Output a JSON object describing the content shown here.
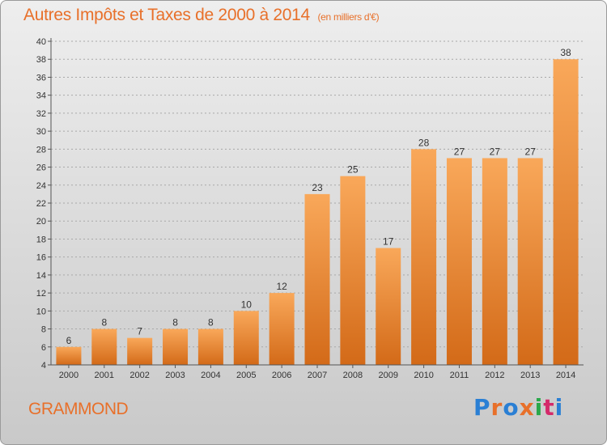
{
  "header": {
    "title": "Autres Impôts et Taxes de 2000 à 2014",
    "unit": "(en milliers d'€)"
  },
  "commune": "GRAMMOND",
  "logo": {
    "text": "Proxiti",
    "colors": [
      "#2a7fd4",
      "#e8702a",
      "#2a7fd4",
      "#e8702a",
      "#2aa84a",
      "#d42a6a",
      "#2a7fd4"
    ]
  },
  "colors": {
    "bar_light": "#f9a85a",
    "bar_dark": "#d36a18",
    "accent": "#e8702a",
    "axis": "#555555",
    "grid": "#a8a8a8"
  },
  "chart_data": {
    "type": "bar",
    "title": "Autres Impôts et Taxes de 2000 à 2014",
    "unit": "(en milliers d'€)",
    "categories": [
      "2000",
      "2001",
      "2002",
      "2003",
      "2004",
      "2005",
      "2006",
      "2007",
      "2008",
      "2009",
      "2010",
      "2011",
      "2012",
      "2013",
      "2014"
    ],
    "values": [
      6,
      8,
      7,
      8,
      8,
      10,
      12,
      23,
      25,
      17,
      28,
      27,
      27,
      27,
      38
    ],
    "ylim": [
      4,
      40
    ],
    "yticks": [
      4,
      6,
      8,
      10,
      12,
      14,
      16,
      18,
      20,
      22,
      24,
      26,
      28,
      30,
      32,
      34,
      36,
      38,
      40
    ],
    "grid": true,
    "data_labels": true
  }
}
